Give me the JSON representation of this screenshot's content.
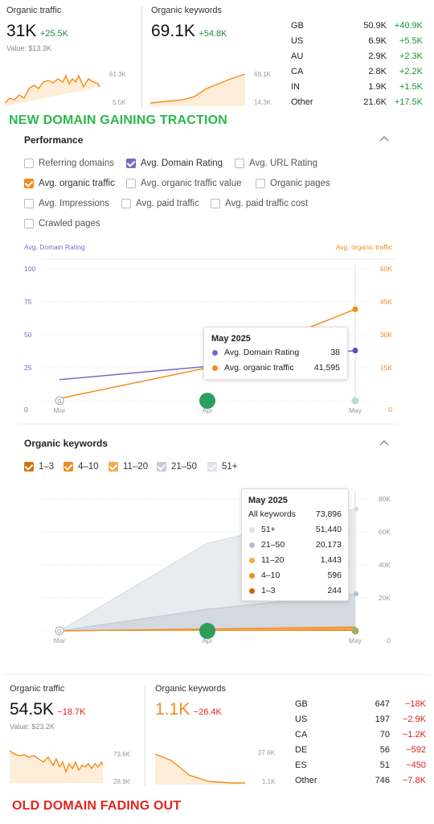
{
  "new_domain": {
    "organic_traffic": {
      "label": "Organic traffic",
      "value": "31K",
      "delta": "+25.5K",
      "sub": "Value: $13.3K",
      "max": "61.3K",
      "min": "5.5K"
    },
    "organic_keywords": {
      "label": "Organic keywords",
      "value": "69.1K",
      "delta": "+54.8K",
      "max": "69.1K",
      "min": "14.3K"
    },
    "countries": [
      {
        "code": "GB",
        "value": "50.9K",
        "delta": "+40.9K"
      },
      {
        "code": "US",
        "value": "6.9K",
        "delta": "+5.5K"
      },
      {
        "code": "AU",
        "value": "2.9K",
        "delta": "+2.3K"
      },
      {
        "code": "CA",
        "value": "2.8K",
        "delta": "+2.2K"
      },
      {
        "code": "IN",
        "value": "1.9K",
        "delta": "+1.5K"
      },
      {
        "code": "Other",
        "value": "21.6K",
        "delta": "+17.5K"
      }
    ]
  },
  "banner_new": "NEW DOMAIN GAINING TRACTION",
  "performance": {
    "title": "Performance",
    "checkboxes": [
      {
        "label": "Referring domains",
        "checked": false,
        "color": ""
      },
      {
        "label": "Avg. Domain Rating",
        "checked": true,
        "color": "#7b68c8"
      },
      {
        "label": "Avg. URL Rating",
        "checked": false,
        "color": ""
      },
      {
        "label": "Avg. organic traffic",
        "checked": true,
        "color": "#f48b1a"
      },
      {
        "label": "Avg. organic traffic value",
        "checked": false,
        "color": ""
      },
      {
        "label": "Organic pages",
        "checked": false,
        "color": ""
      },
      {
        "label": "Avg. Impressions",
        "checked": false,
        "color": ""
      },
      {
        "label": "Avg. paid traffic",
        "checked": false,
        "color": ""
      },
      {
        "label": "Avg. paid traffic cost",
        "checked": false,
        "color": ""
      },
      {
        "label": "Crawled pages",
        "checked": false,
        "color": ""
      }
    ],
    "left_axis_title": "Avg. Domain Rating",
    "right_axis_title": "Avg. organic traffic",
    "left_ticks": [
      "100",
      "75",
      "50",
      "25",
      "0"
    ],
    "right_ticks": [
      "60K",
      "45K",
      "30K",
      "15K",
      "0"
    ],
    "x_ticks": [
      "Mar",
      "Apr",
      "May"
    ],
    "tooltip": {
      "title": "May 2025",
      "rows": [
        {
          "name": "Avg. Domain Rating",
          "value": "38",
          "color": "#7b68c8"
        },
        {
          "name": "Avg. organic traffic",
          "value": "41,595",
          "color": "#f48b1a"
        }
      ]
    }
  },
  "chart_data": [
    {
      "type": "line",
      "x": [
        "Mar",
        "Apr",
        "May"
      ],
      "series": [
        {
          "name": "Avg. Domain Rating",
          "axis": "left",
          "values": [
            16,
            26,
            38
          ]
        },
        {
          "name": "Avg. organic traffic",
          "axis": "right",
          "values": [
            1000,
            15000,
            41595
          ]
        }
      ],
      "ylim_left": [
        0,
        100
      ],
      "ylim_right": [
        0,
        60000
      ]
    },
    {
      "type": "area",
      "x": [
        "Mar",
        "Apr",
        "May"
      ],
      "series": [
        {
          "name": "51+",
          "values": [
            0,
            40000,
            51440
          ]
        },
        {
          "name": "21–50",
          "values": [
            0,
            12000,
            20173
          ]
        },
        {
          "name": "11–20",
          "values": [
            0,
            700,
            1443
          ]
        },
        {
          "name": "4–10",
          "values": [
            0,
            300,
            596
          ]
        },
        {
          "name": "1–3",
          "values": [
            0,
            120,
            244
          ]
        }
      ],
      "ylim": [
        0,
        80000
      ]
    }
  ],
  "keywords": {
    "title": "Organic keywords",
    "checkboxes": [
      {
        "label": "1–3",
        "checked": true,
        "color": "#d5700e"
      },
      {
        "label": "4–10",
        "checked": true,
        "color": "#f48b1a"
      },
      {
        "label": "11–20",
        "checked": true,
        "color": "#f7a94b"
      },
      {
        "label": "21–50",
        "checked": true,
        "color": "#c7ccd6"
      },
      {
        "label": "51+",
        "checked": true,
        "color": "#dde1e8"
      }
    ],
    "y_ticks": [
      "80K",
      "60K",
      "40K",
      "20K",
      "0"
    ],
    "x_ticks": [
      "Mar",
      "Apr",
      "May"
    ],
    "tooltip": {
      "title": "May 2025",
      "all_label": "All keywords",
      "all_value": "73,896",
      "rows": [
        {
          "name": "51+",
          "value": "51,440",
          "color": "#dde1e8"
        },
        {
          "name": "21–50",
          "value": "20,173",
          "color": "#b6bcc8"
        },
        {
          "name": "11–20",
          "value": "1,443",
          "color": "#f7a94b"
        },
        {
          "name": "4–10",
          "value": "596",
          "color": "#f48b1a"
        },
        {
          "name": "1–3",
          "value": "244",
          "color": "#c8680c"
        }
      ]
    }
  },
  "old_domain": {
    "organic_traffic": {
      "label": "Organic traffic",
      "value": "54.5K",
      "delta": "−18.7K",
      "sub": "Value: $23.2K",
      "max": "73.6K",
      "min": "28.9K"
    },
    "organic_keywords": {
      "label": "Organic keywords",
      "value": "1.1K",
      "delta": "−26.4K",
      "max": "27.6K",
      "min": "1.1K"
    },
    "countries": [
      {
        "code": "GB",
        "value": "647",
        "delta": "−18K"
      },
      {
        "code": "US",
        "value": "197",
        "delta": "−2.9K"
      },
      {
        "code": "CA",
        "value": "70",
        "delta": "−1.2K"
      },
      {
        "code": "DE",
        "value": "56",
        "delta": "−592"
      },
      {
        "code": "ES",
        "value": "51",
        "delta": "−450"
      },
      {
        "code": "Other",
        "value": "746",
        "delta": "−7.8K"
      }
    ]
  },
  "banner_old": "OLD DOMAIN FADING OUT",
  "colors": {
    "green_banner": "#2db84b",
    "red_banner": "#e0261d",
    "orange": "#f48b1a",
    "purple": "#7b68c8",
    "marker": "#2e9e5b"
  }
}
